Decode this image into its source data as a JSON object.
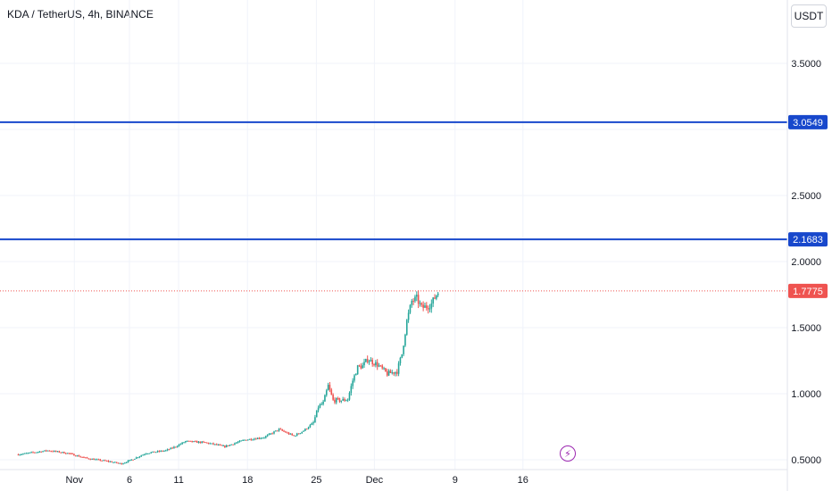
{
  "header": {
    "symbol_title": "KDA / TetherUS, 4h, BINANCE",
    "currency": "USDT"
  },
  "icons": {
    "event": "lightning-bolt-icon"
  },
  "colors": {
    "up": "#26a69a",
    "down": "#ef5350",
    "hline": "#1848cc",
    "last_price": "#ef5350",
    "grid": "#f0f3fa",
    "event": "#9c27b0"
  },
  "chart_data": {
    "type": "candlestick",
    "title": "",
    "xlabel": "",
    "ylabel": "",
    "x_ticks": [
      "Nov",
      "6",
      "11",
      "18",
      "25",
      "Dec",
      "9",
      "16"
    ],
    "x_tick_days": [
      -0.3,
      5.3,
      10.3,
      17.3,
      24.3,
      30.2,
      38.4,
      45.3
    ],
    "y_ticks": [
      "0.5000",
      "1.0000",
      "1.5000",
      "2.0000",
      "2.5000",
      "3.5000"
    ],
    "y_tick_values": [
      0.5,
      1.0,
      1.5,
      2.0,
      2.5,
      3.5
    ],
    "ylim": [
      0.45,
      3.95
    ],
    "horizontal_lines": [
      {
        "value": 3.0549,
        "label": "3.0549"
      },
      {
        "value": 2.1683,
        "label": "2.1683"
      }
    ],
    "last_price": {
      "value": 1.7775,
      "label": "1.7775"
    },
    "price_path": [
      [
        -6.0,
        0.54
      ],
      [
        -3.0,
        0.57
      ],
      [
        -1.0,
        0.55
      ],
      [
        1.0,
        0.51
      ],
      [
        3.0,
        0.49
      ],
      [
        4.5,
        0.47
      ],
      [
        5.5,
        0.5
      ],
      [
        7.0,
        0.55
      ],
      [
        9.0,
        0.57
      ],
      [
        10.0,
        0.6
      ],
      [
        11.0,
        0.64
      ],
      [
        13.0,
        0.63
      ],
      [
        15.0,
        0.6
      ],
      [
        17.0,
        0.65
      ],
      [
        19.0,
        0.67
      ],
      [
        20.5,
        0.73
      ],
      [
        22.0,
        0.68
      ],
      [
        23.0,
        0.72
      ],
      [
        24.0,
        0.78
      ],
      [
        24.5,
        0.9
      ],
      [
        25.0,
        0.93
      ],
      [
        25.5,
        1.06
      ],
      [
        26.0,
        0.95
      ],
      [
        27.0,
        0.95
      ],
      [
        27.5,
        0.96
      ],
      [
        28.0,
        1.1
      ],
      [
        28.5,
        1.2
      ],
      [
        29.0,
        1.21
      ],
      [
        29.5,
        1.26
      ],
      [
        30.5,
        1.22
      ],
      [
        31.5,
        1.15
      ],
      [
        32.5,
        1.17
      ],
      [
        33.0,
        1.3
      ],
      [
        33.5,
        1.55
      ],
      [
        34.0,
        1.7
      ],
      [
        34.5,
        1.72
      ],
      [
        35.0,
        1.65
      ],
      [
        35.5,
        1.66
      ],
      [
        36.0,
        1.68
      ],
      [
        36.5,
        1.75
      ],
      [
        36.8,
        1.78
      ]
    ]
  }
}
